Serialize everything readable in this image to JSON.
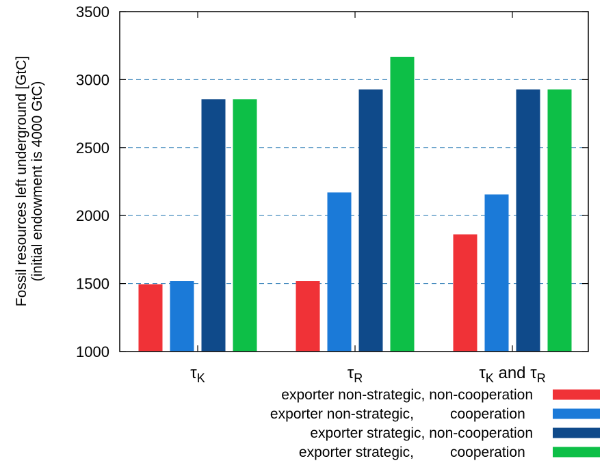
{
  "chart_data": {
    "type": "bar",
    "title": "",
    "xlabel": "",
    "ylabel_line1": "Fossil resources left underground [GtC]",
    "ylabel_line2": "(initial endowment is 4000 GtC)",
    "ylim": [
      1000,
      3500
    ],
    "yticks": [
      "1000",
      "1500",
      "2000",
      "2500",
      "3000",
      "3500"
    ],
    "grid": "horizontal dashed",
    "legend_position": "bottom-right, below plot",
    "categories": [
      {
        "symbol": "τ",
        "sub": "K",
        "text": ""
      },
      {
        "symbol": "τ",
        "sub": "R",
        "text": ""
      },
      {
        "symbol": "τ",
        "sub": "K",
        "text": " and ",
        "symbol2": "τ",
        "sub2": "R"
      }
    ],
    "series": [
      {
        "name": "exporter non-strategic, non-cooperation",
        "name_part1": "exporter non-strategic,",
        "name_part2": "non-cooperation",
        "color": "#f03237",
        "values": [
          1495,
          1518,
          1862
        ]
      },
      {
        "name": "exporter non-strategic, cooperation",
        "name_part1": "exporter non-strategic,",
        "name_part2": "cooperation",
        "color": "#1b7ad8",
        "values": [
          1518,
          2170,
          2155
        ]
      },
      {
        "name": "exporter strategic, non-cooperation",
        "name_part1": "exporter strategic,",
        "name_part2": "non-cooperation",
        "color": "#0f4a8a",
        "values": [
          2855,
          2928,
          2928
        ]
      },
      {
        "name": "exporter strategic, cooperation",
        "name_part1": "exporter strategic,",
        "name_part2": "cooperation",
        "color": "#0dbf47",
        "values": [
          2855,
          3168,
          2928
        ]
      }
    ]
  }
}
